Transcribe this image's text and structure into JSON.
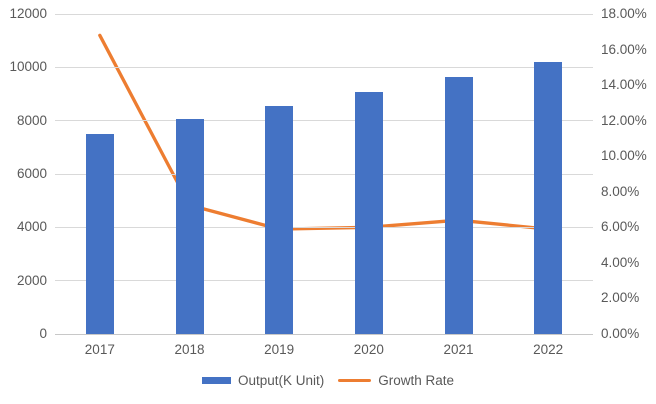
{
  "chart_data": {
    "type": "combo",
    "title": "",
    "categories": [
      "2017",
      "2018",
      "2019",
      "2020",
      "2021",
      "2022"
    ],
    "series": [
      {
        "name": "Output(K Unit)",
        "type": "bar",
        "axis": "left",
        "values": [
          7500,
          8060,
          8560,
          9080,
          9620,
          10200
        ]
      },
      {
        "name": "Growth Rate",
        "type": "line",
        "axis": "right",
        "values_percent": [
          16.8,
          7.25,
          5.9,
          6.0,
          6.4,
          5.9
        ]
      }
    ],
    "left_axis": {
      "min": 0,
      "max": 12000,
      "step": 2000,
      "tick_labels": [
        "0",
        "2000",
        "4000",
        "6000",
        "8000",
        "10000",
        "12000"
      ]
    },
    "right_axis": {
      "min": 0,
      "max": 18,
      "step": 2,
      "tick_labels": [
        "0.00%",
        "2.00%",
        "4.00%",
        "6.00%",
        "8.00%",
        "10.00%",
        "12.00%",
        "14.00%",
        "16.00%",
        "18.00%"
      ]
    },
    "legend": {
      "position": "bottom",
      "entries": [
        "Output(K Unit)",
        "Growth Rate"
      ]
    },
    "grid": true,
    "colors": {
      "bar": "#4472C4",
      "line": "#ED7D31",
      "text": "#595959",
      "gridline": "#D9D9D9",
      "axis_line": "#C8C8C8",
      "background": "#FFFFFF"
    }
  }
}
